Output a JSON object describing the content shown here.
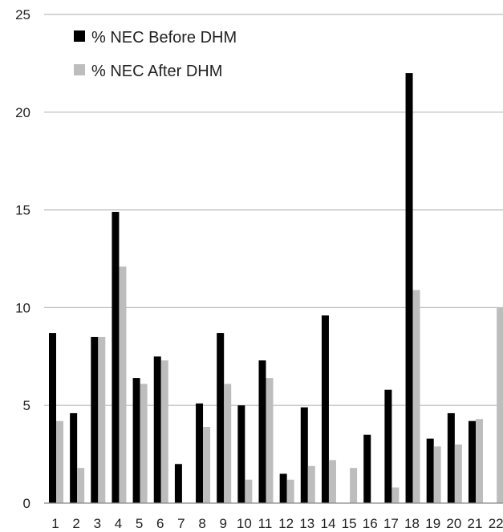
{
  "chart_data": {
    "type": "bar",
    "categories": [
      "1",
      "2",
      "3",
      "4",
      "5",
      "6",
      "7",
      "8",
      "9",
      "10",
      "11",
      "12",
      "13",
      "14",
      "15",
      "16",
      "17",
      "18",
      "19",
      "20",
      "21",
      "22"
    ],
    "series": [
      {
        "name": "% NEC Before DHM",
        "color": "#000000",
        "values": [
          8.7,
          4.6,
          8.5,
          14.9,
          6.4,
          7.5,
          2.0,
          5.1,
          8.7,
          5.0,
          7.3,
          1.5,
          4.9,
          9.6,
          0,
          3.5,
          5.8,
          22.0,
          3.3,
          4.6,
          4.2,
          0
        ]
      },
      {
        "name": "% NEC After DHM",
        "color": "#bdbdbd",
        "values": [
          4.2,
          1.8,
          8.5,
          12.1,
          6.1,
          7.3,
          0,
          3.9,
          6.1,
          1.2,
          6.4,
          1.2,
          1.9,
          2.2,
          1.8,
          0,
          0.8,
          10.9,
          2.9,
          3.0,
          4.3,
          10.0
        ]
      }
    ],
    "ylim": [
      0,
      25
    ],
    "yticks": [
      "0",
      "5",
      "10",
      "15",
      "20",
      "25"
    ],
    "grid": "horizontal",
    "legend_position": "top-left"
  }
}
